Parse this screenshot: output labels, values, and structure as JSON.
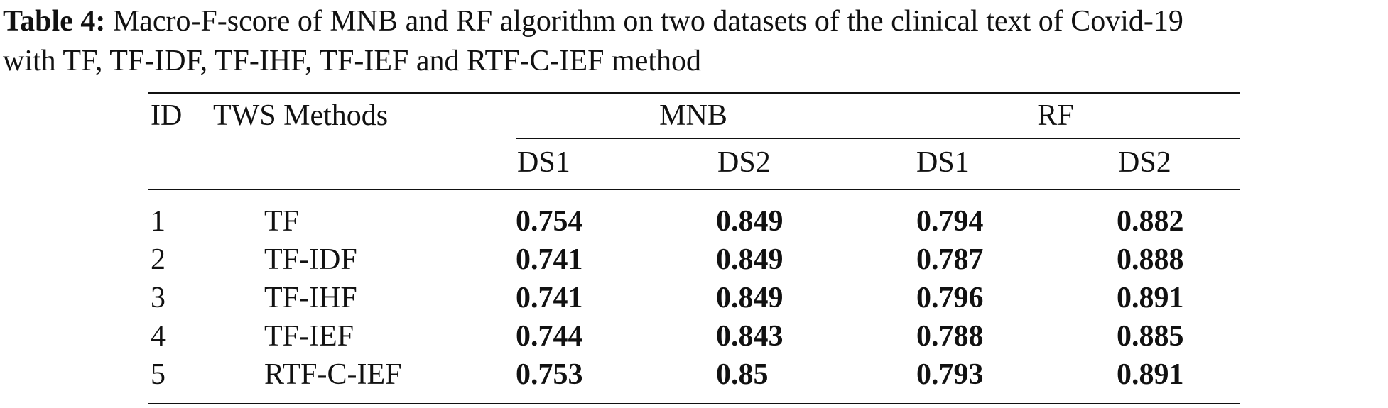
{
  "caption": {
    "label": "Table 4:",
    "line1": "Macro-F-score of MNB and RF algorithm on two datasets of the clinical text of Covid-19",
    "line2": "with TF, TF-IDF, TF-IHF, TF-IEF and RTF-C-IEF method"
  },
  "table": {
    "headers": {
      "id": "ID",
      "method": "TWS Methods",
      "groups": [
        "MNB",
        "RF"
      ],
      "subcols": [
        "DS1",
        "DS2",
        "DS1",
        "DS2"
      ]
    },
    "rows": [
      {
        "id": "1",
        "method": "TF",
        "values": [
          "0.754",
          "0.849",
          "0.794",
          "0.882"
        ]
      },
      {
        "id": "2",
        "method": "TF-IDF",
        "values": [
          "0.741",
          "0.849",
          "0.787",
          "0.888"
        ]
      },
      {
        "id": "3",
        "method": "TF-IHF",
        "values": [
          "0.741",
          "0.849",
          "0.796",
          "0.891"
        ]
      },
      {
        "id": "4",
        "method": "TF-IEF",
        "values": [
          "0.744",
          "0.843",
          "0.788",
          "0.885"
        ]
      },
      {
        "id": "5",
        "method": "RTF-C-IEF",
        "values": [
          "0.753",
          "0.85",
          "0.793",
          "0.891"
        ]
      }
    ]
  }
}
